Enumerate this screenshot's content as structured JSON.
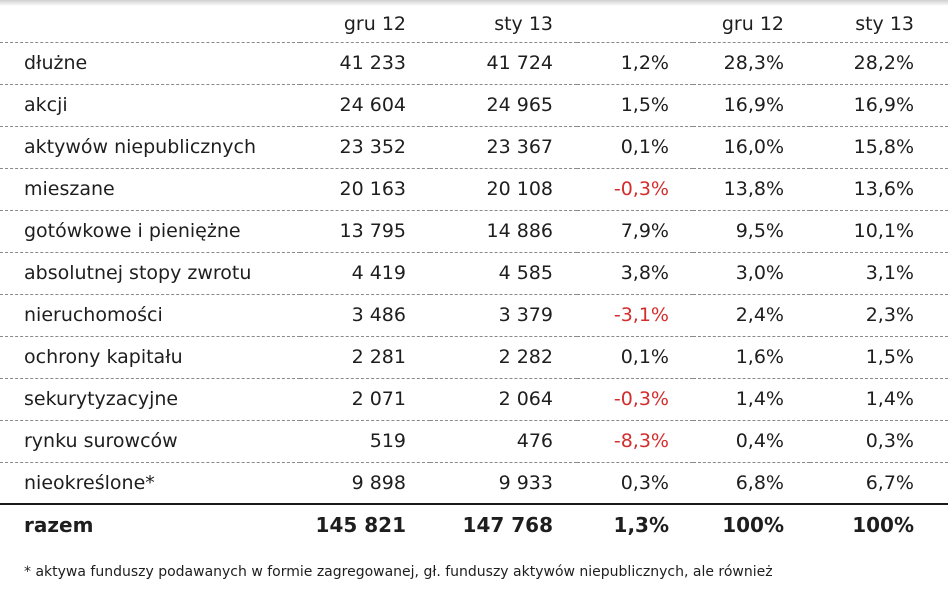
{
  "table": {
    "headers": [
      "",
      "gru 12",
      "sty 13",
      "",
      "gru 12",
      "sty 13"
    ],
    "rows": [
      {
        "label": "dłużne",
        "gru12": "41 233",
        "sty13": "41 724",
        "change": "1,2%",
        "share_gru12": "28,3%",
        "share_sty13": "28,2%",
        "negative": false
      },
      {
        "label": "akcji",
        "gru12": "24 604",
        "sty13": "24 965",
        "change": "1,5%",
        "share_gru12": "16,9%",
        "share_sty13": "16,9%",
        "negative": false
      },
      {
        "label": "aktywów niepublicznych",
        "gru12": "23 352",
        "sty13": "23 367",
        "change": "0,1%",
        "share_gru12": "16,0%",
        "share_sty13": "15,8%",
        "negative": false
      },
      {
        "label": "mieszane",
        "gru12": "20 163",
        "sty13": "20 108",
        "change": "-0,3%",
        "share_gru12": "13,8%",
        "share_sty13": "13,6%",
        "negative": true
      },
      {
        "label": "gotówkowe i pieniężne",
        "gru12": "13 795",
        "sty13": "14 886",
        "change": "7,9%",
        "share_gru12": "9,5%",
        "share_sty13": "10,1%",
        "negative": false
      },
      {
        "label": "absolutnej stopy zwrotu",
        "gru12": "4 419",
        "sty13": "4 585",
        "change": "3,8%",
        "share_gru12": "3,0%",
        "share_sty13": "3,1%",
        "negative": false
      },
      {
        "label": "nieruchomości",
        "gru12": "3 486",
        "sty13": "3 379",
        "change": "-3,1%",
        "share_gru12": "2,4%",
        "share_sty13": "2,3%",
        "negative": true
      },
      {
        "label": "ochrony kapitału",
        "gru12": "2 281",
        "sty13": "2 282",
        "change": "0,1%",
        "share_gru12": "1,6%",
        "share_sty13": "1,5%",
        "negative": false
      },
      {
        "label": "sekurytyzacyjne",
        "gru12": "2 071",
        "sty13": "2 064",
        "change": "-0,3%",
        "share_gru12": "1,4%",
        "share_sty13": "1,4%",
        "negative": true
      },
      {
        "label": "rynku surowców",
        "gru12": "519",
        "sty13": "476",
        "change": "-8,3%",
        "share_gru12": "0,4%",
        "share_sty13": "0,3%",
        "negative": true
      },
      {
        "label": "nieokreślone*",
        "gru12": "9 898",
        "sty13": "9 933",
        "change": "0,3%",
        "share_gru12": "6,8%",
        "share_sty13": "6,7%",
        "negative": false
      }
    ],
    "total": {
      "label": "razem",
      "gru12": "145 821",
      "sty13": "147 768",
      "change": "1,3%",
      "share_gru12": "100%",
      "share_sty13": "100%"
    }
  },
  "footnote": "* aktywa funduszy podawanych w formie zagregowanej, gł. funduszy aktywów niepublicznych, ale również",
  "colors": {
    "negative": "#d42d2d",
    "text": "#1e1e1e",
    "rule": "#8a8a8a"
  }
}
